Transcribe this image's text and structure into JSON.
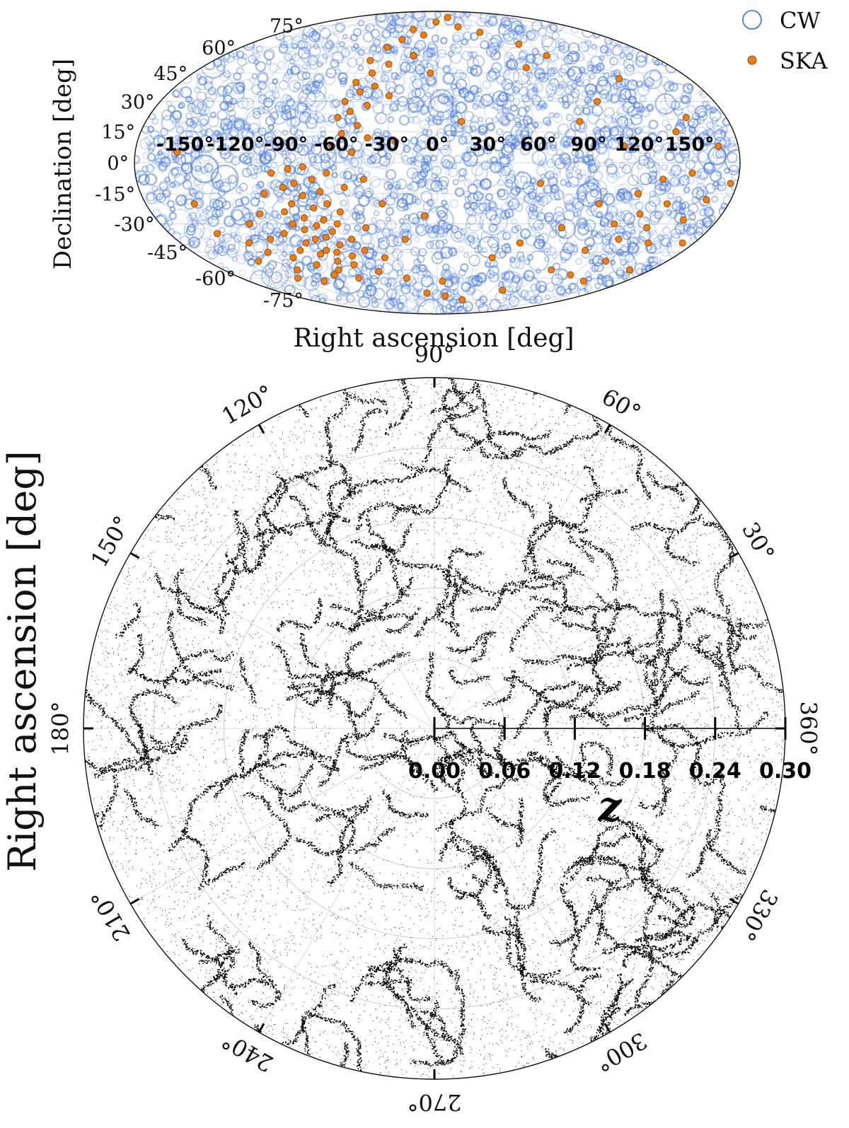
{
  "chart_data": [
    {
      "type": "scatter",
      "projection": "mollweide",
      "xlabel": "Right ascension [deg]",
      "ylabel": "Declination [deg]",
      "x_ticks": [
        "-150°",
        "-120°",
        "-90°",
        "-60°",
        "-30°",
        "0°",
        "30°",
        "60°",
        "90°",
        "120°",
        "150°"
      ],
      "y_ticks": [
        "75°",
        "60°",
        "45°",
        "30°",
        "15°",
        "0°",
        "-15°",
        "-30°",
        "-45°",
        "-60°",
        "-75°"
      ],
      "xlim": [
        -180,
        180
      ],
      "ylim": [
        -90,
        90
      ],
      "grid": true,
      "legend_position": "top-right",
      "series": [
        {
          "name": "CW",
          "marker": "open-circle",
          "color": "#4a7be0",
          "approx_count": 2600,
          "note_regions": "uniform over sky"
        },
        {
          "name": "SKA",
          "marker": "filled-circle",
          "color": "#f07d0c",
          "edge_color": "#8a4a10",
          "points": [
            [
              -155,
              5
            ],
            [
              -150,
              -20
            ],
            [
              -148,
              -35
            ],
            [
              -140,
              -50
            ],
            [
              -132,
              -40
            ],
            [
              -128,
              -60
            ],
            [
              -125,
              -45
            ],
            [
              -122,
              -30
            ],
            [
              -118,
              -55
            ],
            [
              -115,
              -38
            ],
            [
              -112,
              -25
            ],
            [
              -110,
              -48
            ],
            [
              -108,
              -62
            ],
            [
              -105,
              -15
            ],
            [
              -103,
              -35
            ],
            [
              -100,
              -44
            ],
            [
              -99,
              -5
            ],
            [
              -97,
              -52
            ],
            [
              -96,
              -24
            ],
            [
              -94,
              -30
            ],
            [
              -93,
              -12
            ],
            [
              -92,
              -40
            ],
            [
              -91,
              -58
            ],
            [
              -90,
              -20
            ],
            [
              -89,
              -3
            ],
            [
              -88,
              -33
            ],
            [
              -87,
              -46
            ],
            [
              -86,
              -10
            ],
            [
              -85,
              -27
            ],
            [
              -84,
              -38
            ],
            [
              -83,
              -55
            ],
            [
              -82,
              -16
            ],
            [
              -81,
              -44
            ],
            [
              -80,
              -2
            ],
            [
              -79,
              -31
            ],
            [
              -78,
              -50
            ],
            [
              -77,
              -22
            ],
            [
              -76,
              -37
            ],
            [
              -75,
              -8
            ],
            [
              -74,
              -45
            ],
            [
              -73,
              -28
            ],
            [
              -72,
              -60
            ],
            [
              -71,
              -14
            ],
            [
              -70,
              -34
            ],
            [
              -69,
              -41
            ],
            [
              -68,
              -20
            ],
            [
              -67,
              -52
            ],
            [
              -66,
              -5
            ],
            [
              -65,
              -30
            ],
            [
              -64,
              -47
            ],
            [
              -63,
              8
            ],
            [
              -62,
              22
            ],
            [
              -61,
              -24
            ],
            [
              -60,
              30
            ],
            [
              -59,
              -38
            ],
            [
              -58,
              14
            ],
            [
              -57,
              40
            ],
            [
              -56,
              -12
            ],
            [
              -55,
              25
            ],
            [
              -54,
              52
            ],
            [
              -53,
              -44
            ],
            [
              -52,
              35
            ],
            [
              -51,
              5
            ],
            [
              -50,
              -56
            ],
            [
              -49,
              18
            ],
            [
              -48,
              45
            ],
            [
              -47,
              -32
            ],
            [
              -46,
              60
            ],
            [
              -45,
              28
            ],
            [
              -44,
              -8
            ],
            [
              -43,
              38
            ],
            [
              -42,
              12
            ],
            [
              -40,
              -48
            ],
            [
              -38,
              50
            ],
            [
              -36,
              65
            ],
            [
              -34,
              -20
            ],
            [
              -32,
              33
            ],
            [
              -30,
              72
            ],
            [
              -28,
              -60
            ],
            [
              -25,
              10
            ],
            [
              -22,
              -38
            ],
            [
              -20,
              55
            ],
            [
              -15,
              68
            ],
            [
              -12,
              -70
            ],
            [
              -8,
              -26
            ],
            [
              -5,
              45
            ],
            [
              -2,
              78
            ],
            [
              5,
              -62
            ],
            [
              10,
              -72
            ],
            [
              15,
              20
            ],
            [
              22,
              82
            ],
            [
              28,
              74
            ],
            [
              35,
              -75
            ],
            [
              42,
              -48
            ],
            [
              50,
              70
            ],
            [
              58,
              -40
            ],
            [
              62,
              -10
            ],
            [
              68,
              48
            ],
            [
              72,
              -68
            ],
            [
              78,
              62
            ],
            [
              82,
              -32
            ],
            [
              88,
              20
            ],
            [
              92,
              55
            ],
            [
              96,
              -55
            ],
            [
              100,
              -20
            ],
            [
              104,
              30
            ],
            [
              108,
              -44
            ],
            [
              112,
              8
            ],
            [
              115,
              -30
            ],
            [
              118,
              -58
            ],
            [
              122,
              -15
            ],
            [
              125,
              -38
            ],
            [
              128,
              -25
            ],
            [
              130,
              42
            ],
            [
              132,
              -50
            ],
            [
              135,
              -8
            ],
            [
              138,
              -32
            ],
            [
              140,
              -62
            ],
            [
              142,
              -20
            ],
            [
              145,
              15
            ],
            [
              148,
              -40
            ],
            [
              152,
              -5
            ],
            [
              155,
              22
            ],
            [
              158,
              -28
            ],
            [
              162,
              -55
            ],
            [
              165,
              -18
            ],
            [
              168,
              8
            ],
            [
              172,
              -40
            ],
            [
              176,
              -10
            ]
          ]
        }
      ]
    },
    {
      "type": "scatter",
      "projection": "polar",
      "theta_label": "Right ascension [deg]",
      "r_label": "z",
      "theta_ticks": [
        "90°",
        "60°",
        "30°",
        "360°",
        "330°",
        "300°",
        "270°",
        "240°",
        "210°",
        "180°",
        "150°",
        "120°"
      ],
      "theta_tick_values_deg": [
        90,
        60,
        30,
        0,
        330,
        300,
        270,
        240,
        210,
        180,
        150,
        120
      ],
      "r_ticks": [
        "0.00",
        "0.06",
        "0.12",
        "0.18",
        "0.24",
        "0.30"
      ],
      "r_tick_values": [
        0.0,
        0.06,
        0.12,
        0.18,
        0.24,
        0.3
      ],
      "rlim": [
        0,
        0.3
      ],
      "grid": true,
      "series": [
        {
          "marker": "point",
          "color": "#000000",
          "approx_count": 60000,
          "description_of_distribution": "filamentary cosmic-web structure, density increases with z"
        }
      ]
    }
  ],
  "legend": {
    "items": [
      {
        "label": "CW",
        "color": "#4a7be0",
        "marker": "open-circle"
      },
      {
        "label": "SKA",
        "color": "#f07d0c",
        "marker": "filled-circle"
      }
    ]
  }
}
